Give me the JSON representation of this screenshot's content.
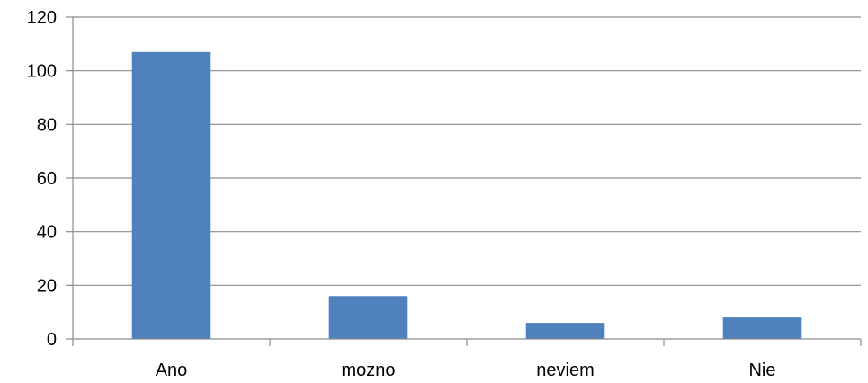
{
  "chart_data": {
    "type": "bar",
    "categories": [
      "Ano",
      "mozno",
      "neviem",
      "Nie"
    ],
    "values": [
      107,
      16,
      6,
      8
    ],
    "title": "",
    "xlabel": "",
    "ylabel": "",
    "ylim": [
      0,
      120
    ],
    "yticks": [
      0,
      20,
      40,
      60,
      80,
      100,
      120
    ],
    "grid": true,
    "legend": "none",
    "bar_color": "#4f81bd"
  }
}
